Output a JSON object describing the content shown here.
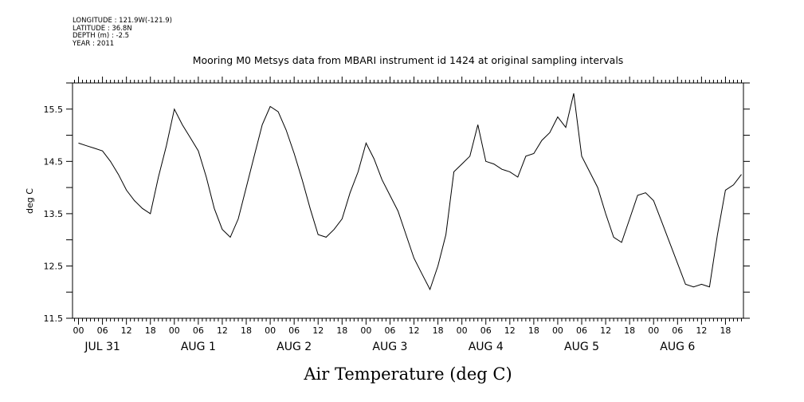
{
  "header": {
    "lines": [
      "LONGITUDE : 121.9W(-121.9)",
      "LATITUDE : 36.8N",
      "DEPTH (m) : -2.5",
      "YEAR : 2011"
    ]
  },
  "chart_data": {
    "type": "line",
    "title": "Mooring M0 Metsys data from MBARI instrument id 1424 at original sampling intervals",
    "xlabel": "Air Temperature (deg C)",
    "ylabel": "deg C",
    "ylim": [
      11.5,
      16.0
    ],
    "yticks": [
      "11.5",
      "12.5",
      "13.5",
      "14.5",
      "15.5"
    ],
    "x_hour_ticks": [
      "00",
      "06",
      "12",
      "18"
    ],
    "x_day_labels": [
      "JUL 31",
      "AUG 1",
      "AUG 2",
      "AUG 3",
      "AUG 4",
      "AUG 5",
      "AUG 6"
    ],
    "xlim_hours": [
      -1.5,
      166.5
    ],
    "grid": false,
    "series": [
      {
        "x": [
          0,
          2,
          4,
          6,
          8,
          10,
          12,
          14,
          16,
          18,
          20,
          22,
          24,
          26,
          28,
          30,
          32,
          34,
          36,
          38,
          40,
          42,
          44,
          46,
          48,
          50,
          52,
          54,
          56,
          58,
          60,
          62,
          64,
          66,
          68,
          70,
          72,
          74,
          76,
          78,
          80,
          82,
          84,
          86,
          88,
          90,
          92,
          94,
          96,
          98,
          100,
          102,
          104,
          106,
          108,
          110,
          112,
          114,
          116,
          118,
          120,
          122,
          124,
          126,
          128,
          130,
          132,
          134,
          136,
          138,
          140,
          142,
          144,
          146,
          148,
          150,
          152,
          154,
          156,
          158,
          160,
          162,
          164,
          166
        ],
        "y": [
          14.85,
          14.8,
          14.75,
          14.7,
          14.5,
          14.25,
          13.95,
          13.75,
          13.6,
          13.5,
          14.2,
          14.8,
          15.5,
          15.2,
          14.95,
          14.7,
          14.2,
          13.6,
          13.2,
          13.05,
          13.4,
          14.0,
          14.6,
          15.2,
          15.55,
          15.45,
          15.1,
          14.65,
          14.15,
          13.6,
          13.1,
          13.05,
          13.2,
          13.4,
          13.9,
          14.3,
          14.85,
          14.55,
          14.15,
          13.85,
          13.55,
          13.1,
          12.65,
          12.35,
          12.05,
          12.5,
          13.1,
          14.3,
          14.45,
          14.6,
          15.2,
          14.5,
          14.45,
          14.35,
          14.3,
          14.2,
          14.6,
          14.65,
          14.9,
          15.05,
          15.35,
          15.15,
          15.8,
          14.6,
          14.3,
          14.0,
          13.5,
          13.05,
          12.95,
          13.4,
          13.85,
          13.9,
          13.75,
          13.35,
          12.95,
          12.55,
          12.15,
          12.1,
          12.15,
          12.1,
          13.1,
          13.95,
          14.05,
          14.25
        ]
      }
    ]
  }
}
